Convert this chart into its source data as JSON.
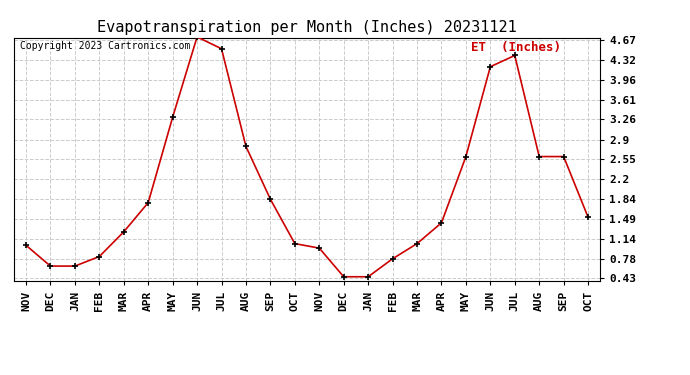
{
  "title": "Evapotranspiration per Month (Inches) 20231121",
  "copyright": "Copyright 2023 Cartronics.com",
  "legend_label": "ET  (Inches)",
  "x_labels": [
    "NOV",
    "DEC",
    "JAN",
    "FEB",
    "MAR",
    "APR",
    "MAY",
    "JUN",
    "JUL",
    "AUG",
    "SEP",
    "OCT",
    "NOV",
    "DEC",
    "JAN",
    "FEB",
    "MAR",
    "APR",
    "MAY",
    "JUN",
    "JUL",
    "AUG",
    "SEP",
    "OCT"
  ],
  "y_values": [
    1.02,
    0.65,
    0.65,
    0.82,
    1.26,
    1.78,
    3.3,
    4.73,
    4.52,
    2.78,
    1.84,
    1.05,
    0.97,
    0.46,
    0.46,
    0.78,
    1.05,
    1.42,
    2.6,
    4.2,
    4.4,
    2.6,
    2.6,
    1.52
  ],
  "line_color": "#cc0000",
  "marker_color": "#000000",
  "background_color": "#ffffff",
  "grid_color": "#cccccc",
  "title_color": "#000000",
  "copyright_color": "#000000",
  "legend_color": "#cc0000",
  "y_ticks": [
    0.43,
    0.78,
    1.14,
    1.49,
    1.84,
    2.2,
    2.55,
    2.9,
    3.26,
    3.61,
    3.96,
    4.32,
    4.67
  ],
  "y_min": 0.43,
  "y_max": 4.67,
  "title_fontsize": 11,
  "copyright_fontsize": 7,
  "legend_fontsize": 9,
  "tick_fontsize": 8
}
